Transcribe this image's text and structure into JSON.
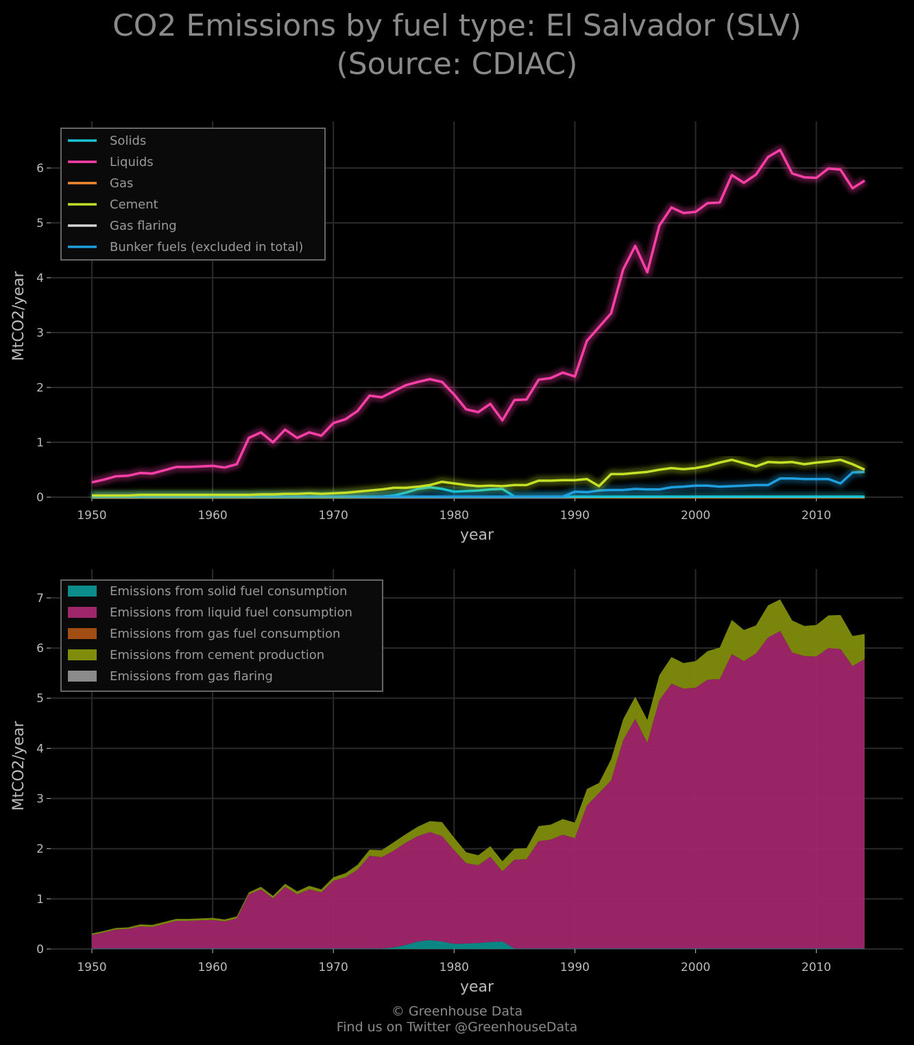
{
  "title": {
    "line1": "CO2 Emissions by fuel type: El Salvador (SLV)",
    "line2": "(Source: CDIAC)"
  },
  "footer": {
    "line1": "© Greenhouse Data",
    "line2": "Find us on Twitter @GreenhouseData"
  },
  "colors": {
    "background": "#000000",
    "grid": "#2a2a2a",
    "text": "#bbbbbb",
    "solids": "#17c5d6",
    "liquids": "#ff3fa8",
    "gas": "#f28a2e",
    "cement": "#c5e026",
    "flaring": "#d5d5d5",
    "bunker": "#1e9fe0",
    "solids_fill": "#0d8c8c",
    "liquids_fill": "#a0266a",
    "gas_fill": "#a04e14",
    "cement_fill": "#7f8c0c",
    "flaring_fill": "#8a8a8a"
  },
  "chart_data": [
    {
      "type": "line",
      "xlabel": "year",
      "ylabel": "MtCO2/year",
      "xlim": [
        1950,
        2014
      ],
      "ylim": [
        0,
        6.6
      ],
      "x_ticks": [
        "1950",
        "1960",
        "1970",
        "1980",
        "1990",
        "2000",
        "2010"
      ],
      "y_ticks": [
        "0",
        "1",
        "2",
        "3",
        "4",
        "5",
        "6"
      ],
      "grid": true,
      "legend_position": "top-left",
      "x": [
        1950,
        1951,
        1952,
        1953,
        1954,
        1955,
        1956,
        1957,
        1958,
        1959,
        1960,
        1961,
        1962,
        1963,
        1964,
        1965,
        1966,
        1967,
        1968,
        1969,
        1970,
        1971,
        1972,
        1973,
        1974,
        1975,
        1976,
        1977,
        1978,
        1979,
        1980,
        1981,
        1982,
        1983,
        1984,
        1985,
        1986,
        1987,
        1988,
        1989,
        1990,
        1991,
        1992,
        1993,
        1994,
        1995,
        1996,
        1997,
        1998,
        1999,
        2000,
        2001,
        2002,
        2003,
        2004,
        2005,
        2006,
        2007,
        2008,
        2009,
        2010,
        2011,
        2012,
        2013,
        2014
      ],
      "series": [
        {
          "name": "Solids",
          "color": "#17c5d6",
          "values": [
            0.01,
            0.01,
            0.01,
            0.01,
            0.01,
            0.01,
            0.01,
            0.01,
            0.01,
            0.01,
            0.01,
            0.01,
            0.01,
            0.01,
            0.01,
            0.01,
            0.01,
            0.01,
            0.01,
            0.01,
            0.01,
            0.01,
            0.01,
            0.01,
            0.01,
            0.03,
            0.08,
            0.15,
            0.18,
            0.15,
            0.1,
            0.11,
            0.12,
            0.14,
            0.15,
            0.01,
            0.01,
            0.01,
            0.01,
            0.01,
            0.01,
            0.01,
            0.01,
            0.01,
            0.01,
            0.01,
            0.01,
            0.01,
            0.01,
            0.01,
            0.01,
            0.01,
            0.01,
            0.01,
            0.01,
            0.01,
            0.01,
            0.01,
            0.01,
            0.01,
            0.01,
            0.01,
            0.01,
            0.01,
            0.01
          ]
        },
        {
          "name": "Liquids",
          "color": "#ff3fa8",
          "values": [
            0.27,
            0.32,
            0.38,
            0.39,
            0.44,
            0.43,
            0.49,
            0.55,
            0.55,
            0.56,
            0.57,
            0.54,
            0.6,
            1.08,
            1.18,
            1.0,
            1.23,
            1.08,
            1.18,
            1.12,
            1.35,
            1.42,
            1.57,
            1.85,
            1.82,
            1.93,
            2.04,
            2.1,
            2.15,
            2.1,
            1.87,
            1.6,
            1.55,
            1.7,
            1.4,
            1.77,
            1.78,
            2.14,
            2.17,
            2.27,
            2.2,
            2.85,
            3.1,
            3.35,
            4.15,
            4.58,
            4.1,
            4.95,
            5.28,
            5.18,
            5.2,
            5.36,
            5.37,
            5.87,
            5.73,
            5.88,
            6.2,
            6.33,
            5.9,
            5.83,
            5.82,
            5.99,
            5.97,
            5.63,
            5.77
          ]
        },
        {
          "name": "Gas",
          "color": "#f28a2e",
          "values": [
            0.0,
            0.0,
            0.0,
            0.0,
            0.0,
            0.0,
            0.0,
            0.0,
            0.0,
            0.0,
            0.0,
            0.0,
            0.0,
            0.0,
            0.0,
            0.0,
            0.0,
            0.0,
            0.0,
            0.0,
            0.0,
            0.0,
            0.0,
            0.0,
            0.0,
            0.0,
            0.0,
            0.0,
            0.0,
            0.0,
            0.0,
            0.0,
            0.0,
            0.0,
            0.0,
            0.0,
            0.0,
            0.0,
            0.0,
            0.0,
            0.0,
            0.0,
            0.0,
            0.0,
            0.0,
            0.0,
            0.0,
            0.0,
            0.0,
            0.0,
            0.0,
            0.0,
            0.0,
            0.0,
            0.0,
            0.0,
            0.0,
            0.0,
            0.0,
            0.0,
            0.0,
            0.0,
            0.0,
            0.0,
            0.0
          ]
        },
        {
          "name": "Cement",
          "color": "#c5e026",
          "values": [
            0.03,
            0.03,
            0.03,
            0.03,
            0.04,
            0.04,
            0.04,
            0.04,
            0.04,
            0.04,
            0.04,
            0.04,
            0.04,
            0.04,
            0.05,
            0.05,
            0.06,
            0.06,
            0.07,
            0.06,
            0.07,
            0.08,
            0.1,
            0.12,
            0.14,
            0.17,
            0.17,
            0.19,
            0.22,
            0.28,
            0.25,
            0.22,
            0.2,
            0.21,
            0.2,
            0.22,
            0.22,
            0.3,
            0.3,
            0.31,
            0.31,
            0.33,
            0.2,
            0.42,
            0.42,
            0.44,
            0.46,
            0.5,
            0.53,
            0.51,
            0.53,
            0.57,
            0.63,
            0.68,
            0.62,
            0.56,
            0.64,
            0.63,
            0.64,
            0.6,
            0.63,
            0.65,
            0.68,
            0.6,
            0.5
          ]
        },
        {
          "name": "Gas flaring",
          "color": "#d5d5d5",
          "values": [
            0.0,
            0.0,
            0.0,
            0.0,
            0.0,
            0.0,
            0.0,
            0.0,
            0.0,
            0.0,
            0.0,
            0.0,
            0.0,
            0.0,
            0.0,
            0.0,
            0.0,
            0.0,
            0.0,
            0.0,
            0.0,
            0.0,
            0.0,
            0.0,
            0.0,
            0.0,
            0.0,
            0.0,
            0.0,
            0.0,
            0.0,
            0.0,
            0.0,
            0.0,
            0.0,
            0.0,
            0.0,
            0.0,
            0.0,
            0.0,
            0.0,
            0.0,
            0.0,
            0.0,
            0.0,
            0.0,
            0.0,
            0.0,
            0.0,
            0.0,
            0.0,
            0.0,
            0.0,
            0.0,
            0.0,
            0.0,
            0.0,
            0.0,
            0.0,
            0.0,
            0.0,
            0.0,
            0.0,
            0.0,
            0.0
          ]
        },
        {
          "name": "Bunker fuels (excluded in total)",
          "color": "#1e9fe0",
          "values": [
            0.01,
            0.01,
            0.01,
            0.01,
            0.01,
            0.01,
            0.01,
            0.01,
            0.01,
            0.01,
            0.01,
            0.01,
            0.01,
            0.01,
            0.01,
            0.01,
            0.01,
            0.01,
            0.01,
            0.01,
            0.01,
            0.01,
            0.01,
            0.01,
            0.01,
            0.01,
            0.01,
            0.01,
            0.01,
            0.01,
            0.01,
            0.01,
            0.01,
            0.01,
            0.01,
            0.01,
            0.01,
            0.01,
            0.01,
            0.01,
            0.1,
            0.09,
            0.12,
            0.13,
            0.13,
            0.15,
            0.14,
            0.14,
            0.18,
            0.19,
            0.21,
            0.21,
            0.19,
            0.2,
            0.21,
            0.22,
            0.22,
            0.34,
            0.34,
            0.33,
            0.33,
            0.33,
            0.25,
            0.45,
            0.46
          ]
        }
      ]
    },
    {
      "type": "area",
      "stacked": true,
      "xlabel": "year",
      "ylabel": "MtCO2/year",
      "xlim": [
        1950,
        2014
      ],
      "ylim": [
        0,
        7.3
      ],
      "x_ticks": [
        "1950",
        "1960",
        "1970",
        "1980",
        "1990",
        "2000",
        "2010"
      ],
      "y_ticks": [
        "0",
        "1",
        "2",
        "3",
        "4",
        "5",
        "6",
        "7"
      ],
      "grid": true,
      "legend_position": "top-left",
      "series_order": [
        "Emissions from solid fuel consumption",
        "Emissions from liquid fuel consumption",
        "Emissions from gas fuel consumption",
        "Emissions from cement production",
        "Emissions from gas flaring"
      ],
      "series_colors": [
        "#0d8c8c",
        "#a0266a",
        "#a04e14",
        "#7f8c0c",
        "#8a8a8a"
      ],
      "series_source": [
        "Solids",
        "Liquids",
        "Gas",
        "Cement",
        "Gas flaring"
      ]
    }
  ]
}
